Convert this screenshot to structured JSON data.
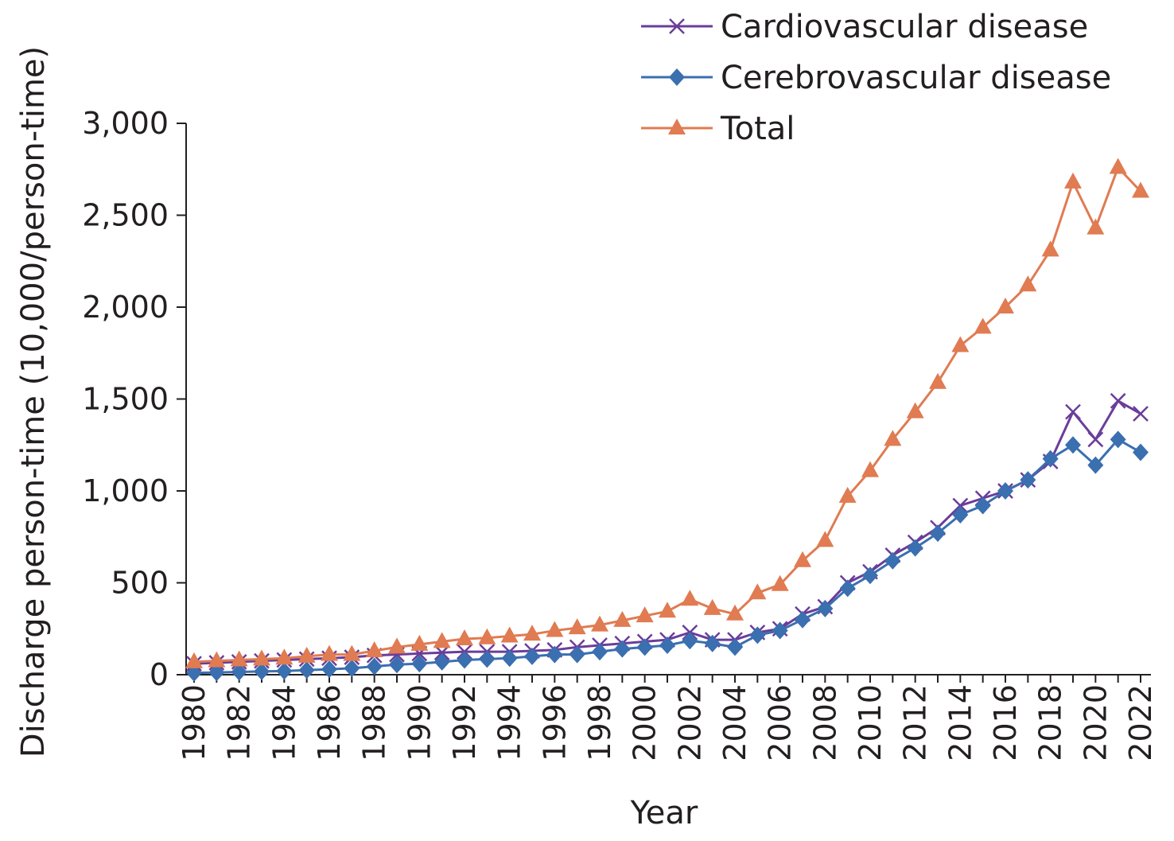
{
  "chart_data": {
    "type": "line",
    "title": "",
    "xlabel": "Year",
    "ylabel": "Discharge person-time (10,000/person-time)",
    "ylim": [
      0,
      3000
    ],
    "yticks": [
      0,
      500,
      1000,
      1500,
      2000,
      2500,
      3000
    ],
    "ytick_labels": [
      "0",
      "500",
      "1,000",
      "1,500",
      "2,000",
      "2,500",
      "3,000"
    ],
    "xticks": [
      1980,
      1982,
      1984,
      1986,
      1988,
      1990,
      1992,
      1994,
      1996,
      1998,
      2000,
      2002,
      2004,
      2006,
      2008,
      2010,
      2012,
      2014,
      2016,
      2018,
      2020,
      2022
    ],
    "xtick_labels": [
      "1980",
      "1982",
      "1984",
      "1986",
      "1988",
      "1990",
      "1992",
      "1994",
      "1996",
      "1998",
      "2000",
      "2002",
      "2004",
      "2006",
      "2008",
      "2010",
      "2012",
      "2014",
      "2016",
      "2018",
      "2020",
      "2022"
    ],
    "grid": false,
    "legend_position": "top-right",
    "x": [
      1980,
      1981,
      1982,
      1983,
      1984,
      1985,
      1986,
      1987,
      1988,
      1989,
      1990,
      1991,
      1992,
      1993,
      1994,
      1995,
      1996,
      1997,
      1998,
      1999,
      2000,
      2001,
      2002,
      2003,
      2004,
      2005,
      2006,
      2007,
      2008,
      2009,
      2010,
      2011,
      2012,
      2013,
      2014,
      2015,
      2016,
      2017,
      2018,
      2019,
      2020,
      2021,
      2022
    ],
    "series": [
      {
        "name": "Cardiovascular disease",
        "color": "#6a3d9a",
        "marker": "x",
        "values": [
          60,
          65,
          70,
          75,
          80,
          85,
          90,
          95,
          105,
          110,
          115,
          120,
          125,
          125,
          125,
          130,
          135,
          150,
          160,
          170,
          180,
          190,
          230,
          190,
          190,
          230,
          250,
          330,
          370,
          500,
          560,
          650,
          720,
          800,
          920,
          960,
          1000,
          1060,
          1160,
          1430,
          1280,
          1490,
          1420
        ]
      },
      {
        "name": "Cerebrovascular disease",
        "color": "#3a6fb0",
        "marker": "diamond",
        "values": [
          10,
          12,
          15,
          18,
          20,
          25,
          30,
          35,
          45,
          55,
          60,
          70,
          80,
          85,
          90,
          100,
          110,
          110,
          125,
          140,
          150,
          160,
          185,
          170,
          150,
          215,
          240,
          300,
          360,
          470,
          540,
          620,
          690,
          770,
          870,
          920,
          1000,
          1060,
          1175,
          1250,
          1140,
          1280,
          1210
        ]
      },
      {
        "name": "Total",
        "color": "#e07b52",
        "marker": "triangle",
        "values": [
          70,
          75,
          80,
          85,
          90,
          100,
          110,
          110,
          130,
          150,
          165,
          180,
          195,
          200,
          210,
          220,
          240,
          255,
          270,
          295,
          320,
          345,
          410,
          360,
          330,
          445,
          490,
          620,
          730,
          970,
          1110,
          1280,
          1430,
          1590,
          1790,
          1890,
          2000,
          2120,
          2310,
          2680,
          2430,
          2760,
          2630
        ]
      }
    ]
  }
}
